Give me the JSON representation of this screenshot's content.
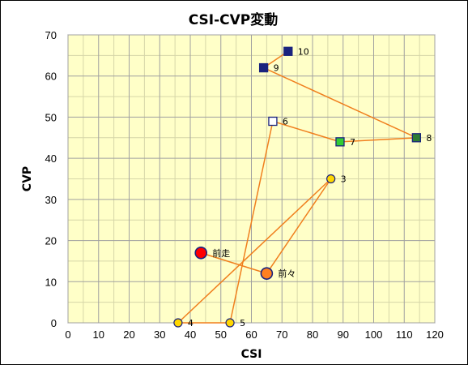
{
  "chart_data": {
    "type": "scatter",
    "title": "CSI-CVP変動",
    "xlabel": "CSI",
    "ylabel": "CVP",
    "xlim": [
      0,
      120
    ],
    "ylim": [
      0,
      70
    ],
    "xticks": [
      0,
      10,
      20,
      30,
      40,
      50,
      60,
      70,
      80,
      90,
      100,
      110,
      120
    ],
    "yticks": [
      0,
      10,
      20,
      30,
      40,
      50,
      60,
      70
    ],
    "grid": true,
    "minor_grid": true,
    "plot_background": "#ffffc8",
    "line_color": "#f07f1e",
    "points": [
      {
        "label": "前走",
        "x": 43.5,
        "y": 17,
        "marker": "circle-large",
        "fill": "#ff0000"
      },
      {
        "label": "前々",
        "x": 65,
        "y": 12,
        "marker": "circle-large",
        "fill": "#ff8020"
      },
      {
        "label": "3",
        "x": 86,
        "y": 35,
        "marker": "circle",
        "fill": "#ffd700"
      },
      {
        "label": "4",
        "x": 36,
        "y": 0,
        "marker": "circle",
        "fill": "#ffd700"
      },
      {
        "label": "5",
        "x": 53,
        "y": 0,
        "marker": "circle",
        "fill": "#ffd700"
      },
      {
        "label": "6",
        "x": 67,
        "y": 49,
        "marker": "square",
        "fill": "#ffffff"
      },
      {
        "label": "7",
        "x": 89,
        "y": 44,
        "marker": "square",
        "fill": "#33cc33"
      },
      {
        "label": "8",
        "x": 114,
        "y": 45,
        "marker": "square",
        "fill": "#2e7d32"
      },
      {
        "label": "9",
        "x": 64,
        "y": 62,
        "marker": "square",
        "fill": "#1a237e"
      },
      {
        "label": "10",
        "x": 72,
        "y": 66,
        "marker": "square",
        "fill": "#1a237e"
      }
    ]
  }
}
